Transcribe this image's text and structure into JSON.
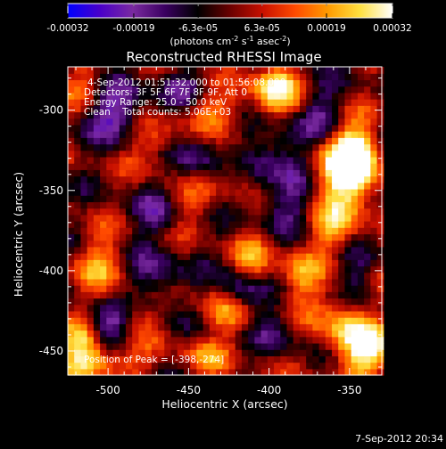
{
  "colorbar": {
    "tick_labels": [
      "-0.00032",
      "-0.00019",
      "-6.3e-05",
      "6.3e-05",
      "0.00019",
      "0.00032"
    ],
    "tick_values": [
      -0.00032,
      -0.00019,
      -6.3e-05,
      6.3e-05,
      0.00019,
      0.00032
    ],
    "range": [
      -0.00032,
      0.00032
    ],
    "unit_main": "(photons cm",
    "unit_exp1": "-2",
    "unit_mid": " s",
    "unit_exp2": "-1",
    "unit_mid2": " asec",
    "unit_exp3": "-2",
    "unit_end": ")",
    "colormap": [
      "#0000ff",
      "#4a00c8",
      "#7a2aa0",
      "#3a0060",
      "#000000",
      "#6a0000",
      "#c81000",
      "#ff4a00",
      "#ff9a00",
      "#ffe040",
      "#ffffff"
    ]
  },
  "chart_data": {
    "type": "heatmap",
    "title": "Reconstructed RHESSI Image",
    "xlabel": "Heliocentric X (arcsec)",
    "ylabel": "Heliocentric Y (arcsec)",
    "xlim": [
      -525,
      -330
    ],
    "ylim": [
      -465,
      -273
    ],
    "x_ticks": [
      -500,
      -450,
      -400,
      -350
    ],
    "x_tick_labels": [
      "-500",
      "-450",
      "-400",
      "-350"
    ],
    "y_ticks": [
      -450,
      -400,
      -350,
      -300
    ],
    "y_tick_labels": [
      "-450",
      "-400",
      "-350",
      "-300"
    ],
    "annotations": [
      "4-Sep-2012 01:51:32.000 to 01:56:08.000",
      "Detectors: 3F 5F 6F 7F 8F 9F, Att 0",
      "Energy Range: 25.0 - 50.0 keV",
      "Clean    Total counts: 5.06E+03"
    ],
    "peak_label": "Position of Peak = [-398,-274]",
    "peak": [
      -398,
      -274
    ],
    "blobs": [
      {
        "x": -352,
        "y": -340,
        "v": 0.00034,
        "sx": 14,
        "sy": 18
      },
      {
        "x": -347,
        "y": -327,
        "v": 0.00026,
        "sx": 9,
        "sy": 12
      },
      {
        "x": -396,
        "y": -282,
        "v": 0.00028,
        "sx": 10,
        "sy": 8
      },
      {
        "x": -395,
        "y": -296,
        "v": 0.00016,
        "sx": 14,
        "sy": 8
      },
      {
        "x": -338,
        "y": -450,
        "v": 0.0003,
        "sx": 12,
        "sy": 12
      },
      {
        "x": -355,
        "y": -432,
        "v": 0.0002,
        "sx": 12,
        "sy": 14
      },
      {
        "x": -515,
        "y": -447,
        "v": 0.00028,
        "sx": 12,
        "sy": 12
      },
      {
        "x": -500,
        "y": -458,
        "v": 0.00018,
        "sx": 16,
        "sy": 7
      },
      {
        "x": -425,
        "y": -425,
        "v": 0.00022,
        "sx": 12,
        "sy": 10
      },
      {
        "x": -410,
        "y": -395,
        "v": 0.00018,
        "sx": 9,
        "sy": 12
      },
      {
        "x": -380,
        "y": -405,
        "v": 0.00016,
        "sx": 10,
        "sy": 14
      },
      {
        "x": -455,
        "y": -360,
        "v": 0.00016,
        "sx": 14,
        "sy": 10
      },
      {
        "x": -470,
        "y": -320,
        "v": 0.00015,
        "sx": 12,
        "sy": 10
      },
      {
        "x": -435,
        "y": -300,
        "v": 0.00015,
        "sx": 12,
        "sy": 8
      },
      {
        "x": -505,
        "y": -395,
        "v": 0.00016,
        "sx": 12,
        "sy": 14
      },
      {
        "x": -485,
        "y": -430,
        "v": 0.00015,
        "sx": 10,
        "sy": 10
      },
      {
        "x": -440,
        "y": -455,
        "v": 0.00016,
        "sx": 10,
        "sy": 8
      },
      {
        "x": -360,
        "y": -375,
        "v": 0.00015,
        "sx": 10,
        "sy": 10
      },
      {
        "x": -515,
        "y": -285,
        "v": 0.00013,
        "sx": 10,
        "sy": 10
      },
      {
        "x": -423,
        "y": -336,
        "v": 0.00012,
        "sx": 10,
        "sy": 10
      },
      {
        "x": -495,
        "y": -300,
        "v": -0.00022,
        "sx": 14,
        "sy": 12
      },
      {
        "x": -468,
        "y": -364,
        "v": -0.00022,
        "sx": 12,
        "sy": 10
      },
      {
        "x": -500,
        "y": -436,
        "v": -0.0003,
        "sx": 10,
        "sy": 10
      },
      {
        "x": -417,
        "y": -414,
        "v": -0.00027,
        "sx": 10,
        "sy": 10
      },
      {
        "x": -445,
        "y": -330,
        "v": -0.00016,
        "sx": 12,
        "sy": 10
      },
      {
        "x": -395,
        "y": -330,
        "v": -0.00018,
        "sx": 14,
        "sy": 14
      },
      {
        "x": -370,
        "y": -300,
        "v": -0.00016,
        "sx": 12,
        "sy": 12
      },
      {
        "x": -470,
        "y": -405,
        "v": -0.00016,
        "sx": 12,
        "sy": 12
      },
      {
        "x": -390,
        "y": -360,
        "v": -0.00014,
        "sx": 12,
        "sy": 10
      },
      {
        "x": -455,
        "y": -285,
        "v": -0.00013,
        "sx": 10,
        "sy": 8
      },
      {
        "x": -395,
        "y": -435,
        "v": -0.00012,
        "sx": 10,
        "sy": 10
      },
      {
        "x": -345,
        "y": -405,
        "v": -0.00012,
        "sx": 8,
        "sy": 12
      }
    ]
  },
  "footer": {
    "timestamp": "7-Sep-2012 20:34"
  }
}
